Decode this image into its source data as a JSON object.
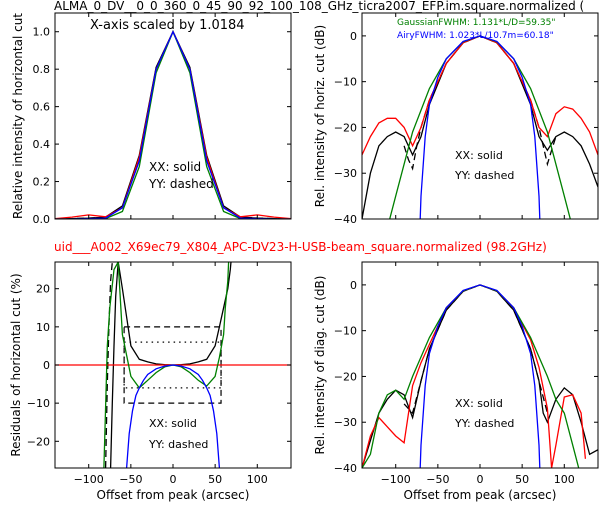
{
  "header": {
    "top_title": "ALMA_0_DV__0_0_360_0_45_90_92_100_108_GHz_ticra2007_EFP.im.square.normalized (",
    "mid_title": "uid___A002_X69ec79_X804_APC-DV23-H-USB-beam_square.normalized (98.2GHz)"
  },
  "colors": {
    "black": "#000000",
    "red": "#ff0000",
    "green": "#008000",
    "blue": "#0000ff"
  },
  "chart_data": [
    {
      "id": "tl",
      "type": "line",
      "xlim": [
        -140,
        140
      ],
      "ylim": [
        0,
        1.1
      ],
      "xticks": [
        -100,
        -50,
        0,
        50,
        100
      ],
      "yticks": [
        0.0,
        0.2,
        0.4,
        0.6,
        0.8,
        1.0
      ],
      "ytick_labels": [
        "0.0",
        "0.2",
        "0.4",
        "0.6",
        "0.8",
        "1.0"
      ],
      "xlabel": "",
      "ylabel": "Relative intensity of horizontal cut",
      "annotations": [
        "X-axis scaled by 1.0184",
        "XX: solid",
        "YY: dashed"
      ],
      "series": [
        {
          "color": "black",
          "dash": false,
          "x": [
            -140,
            -120,
            -100,
            -80,
            -60,
            -40,
            -20,
            0,
            20,
            40,
            60,
            80,
            100,
            120,
            140
          ],
          "y": [
            0,
            0.002,
            0.005,
            0.01,
            0.07,
            0.34,
            0.81,
            1.0,
            0.81,
            0.34,
            0.07,
            0.01,
            0.005,
            0.002,
            0
          ]
        },
        {
          "color": "black",
          "dash": true,
          "x": [
            -140,
            -120,
            -100,
            -80,
            -60,
            -40,
            -20,
            0,
            20,
            40,
            60,
            80,
            100,
            120,
            140
          ],
          "y": [
            0,
            0.002,
            0.005,
            0.01,
            0.06,
            0.32,
            0.8,
            1.0,
            0.8,
            0.32,
            0.06,
            0.01,
            0.005,
            0.002,
            0
          ]
        },
        {
          "color": "red",
          "dash": false,
          "x": [
            -140,
            -120,
            -100,
            -80,
            -60,
            -40,
            -20,
            0,
            20,
            40,
            60,
            80,
            100,
            120,
            140
          ],
          "y": [
            0.002,
            0.01,
            0.022,
            0.012,
            0.06,
            0.33,
            0.8,
            1.0,
            0.8,
            0.33,
            0.06,
            0.012,
            0.022,
            0.01,
            0.002
          ]
        },
        {
          "color": "green",
          "dash": false,
          "x": [
            -140,
            -120,
            -100,
            -80,
            -60,
            -40,
            -20,
            0,
            20,
            40,
            60,
            80,
            100,
            120,
            140
          ],
          "y": [
            0,
            0,
            0,
            0.002,
            0.04,
            0.28,
            0.78,
            1.0,
            0.78,
            0.28,
            0.04,
            0.002,
            0,
            0,
            0
          ]
        },
        {
          "color": "blue",
          "dash": false,
          "x": [
            -140,
            -120,
            -100,
            -80,
            -60,
            -40,
            -20,
            0,
            20,
            40,
            60,
            80,
            100,
            120,
            140
          ],
          "y": [
            0,
            0,
            0.002,
            0.005,
            0.06,
            0.31,
            0.8,
            1.0,
            0.8,
            0.31,
            0.06,
            0.005,
            0.002,
            0,
            0
          ]
        }
      ]
    },
    {
      "id": "tr",
      "type": "line",
      "xlim": [
        -140,
        140
      ],
      "ylim": [
        -40,
        5
      ],
      "xticks": [
        -100,
        -50,
        0,
        50,
        100
      ],
      "yticks": [
        -40,
        -30,
        -20,
        -10,
        0
      ],
      "ytick_labels": [
        "−40",
        "−30",
        "−20",
        "−10",
        "0"
      ],
      "xlabel": "",
      "ylabel": "Rel. intensity of horiz. cut (dB)",
      "annotations": [
        "XX: solid",
        "YY: dashed"
      ],
      "legend": [
        "GaussianFWHM: 1.131*L/D=59.35\"",
        "AiryFWHM: 1.023*L/10.7m=60.18\""
      ],
      "legend_placement": "top-right",
      "series": [
        {
          "color": "black",
          "dash": false,
          "x": [
            -140,
            -130,
            -120,
            -110,
            -100,
            -90,
            -80,
            -70,
            -60,
            -40,
            -20,
            0,
            20,
            40,
            60,
            70,
            80,
            90,
            100,
            110,
            120,
            130,
            140
          ],
          "y": [
            -40,
            -30,
            -24,
            -22,
            -21,
            -22,
            -26,
            -22,
            -15,
            -6,
            -1.5,
            0,
            -1.5,
            -6,
            -15,
            -22,
            -25,
            -22,
            -21,
            -22,
            -24,
            -28,
            -33
          ]
        },
        {
          "color": "black",
          "dash": true,
          "x": [
            -90,
            -85,
            -80,
            -75,
            -70,
            -60,
            -40,
            -20,
            0,
            20,
            40,
            60,
            70,
            75,
            80,
            85,
            90
          ],
          "y": [
            -24,
            -27,
            -29,
            -24,
            -20,
            -14,
            -6,
            -1.5,
            0,
            -1.5,
            -6,
            -14,
            -20,
            -24,
            -28,
            -25,
            -22
          ]
        },
        {
          "color": "red",
          "dash": false,
          "x": [
            -140,
            -130,
            -120,
            -110,
            -100,
            -90,
            -80,
            -70,
            -60,
            -40,
            -20,
            0,
            20,
            40,
            60,
            70,
            80,
            90,
            100,
            110,
            120,
            130,
            140
          ],
          "y": [
            -26,
            -22,
            -19,
            -18,
            -18,
            -20,
            -24,
            -20,
            -14,
            -6,
            -1.5,
            0,
            -1.5,
            -6,
            -14,
            -20,
            -22,
            -17,
            -15.5,
            -16,
            -18,
            -21,
            -26
          ]
        },
        {
          "color": "green",
          "dash": false,
          "x": [
            -110,
            -100,
            -80,
            -60,
            -40,
            -20,
            0,
            20,
            40,
            60,
            80,
            100,
            110
          ],
          "y": [
            -42,
            -35,
            -21,
            -11.5,
            -5,
            -1.3,
            0,
            -1.3,
            -5,
            -11.5,
            -21,
            -35,
            -42
          ]
        },
        {
          "color": "blue",
          "dash": false,
          "x": [
            -71,
            -70,
            -65,
            -60,
            -50,
            -40,
            -20,
            0,
            20,
            40,
            50,
            60,
            65,
            70,
            71
          ],
          "y": [
            -40,
            -35,
            -22,
            -15,
            -9,
            -5,
            -1.2,
            0,
            -1.2,
            -5,
            -9,
            -15,
            -22,
            -35,
            -40
          ]
        }
      ]
    },
    {
      "id": "bl",
      "type": "line",
      "xlim": [
        -140,
        140
      ],
      "ylim": [
        -27,
        27
      ],
      "xticks": [
        -100,
        -50,
        0,
        50,
        100
      ],
      "xtick_labels": [
        "−100",
        "−50",
        "0",
        "50",
        "100"
      ],
      "yticks": [
        -20,
        -10,
        0,
        10,
        20
      ],
      "ytick_labels": [
        "−20",
        "−10",
        "0",
        "10",
        "20"
      ],
      "xlabel": "Offset from peak (arcsec)",
      "ylabel": "Residuals of horizontal cut (%)",
      "annotations": [
        "XX: solid",
        "YY: dashed"
      ],
      "series": [
        {
          "color": "black",
          "dash": false,
          "x": [
            -74,
            -72,
            -70,
            -68,
            -65,
            -60,
            -50,
            -40,
            -30,
            -20,
            -10,
            0,
            10,
            20,
            30,
            40,
            50,
            55,
            60,
            65,
            68,
            70,
            72
          ],
          "y": [
            -27,
            -10,
            5,
            18,
            27,
            20,
            5,
            1.5,
            0.8,
            0.3,
            0.1,
            0,
            0.1,
            0.3,
            0.8,
            1.5,
            5,
            10,
            15,
            20,
            25,
            30,
            40
          ]
        },
        {
          "color": "black",
          "dash": true,
          "x": [
            -80,
            -78,
            -76,
            -74,
            -72
          ],
          "y": [
            -27,
            -5,
            10,
            22,
            27
          ]
        },
        {
          "color": "red",
          "dash": false,
          "x": [
            -140,
            140
          ],
          "y": [
            0,
            0
          ]
        },
        {
          "color": "green",
          "dash": false,
          "x": [
            -82,
            -78,
            -75,
            -70,
            -65,
            -60,
            -50,
            -40,
            -30,
            -20,
            -10,
            0,
            10,
            20,
            30,
            40,
            50,
            55,
            60,
            62,
            65,
            66
          ],
          "y": [
            -27,
            5,
            15,
            25,
            27,
            8,
            -3,
            -6,
            -4,
            -2,
            -0.5,
            0,
            -0.5,
            -2,
            -4,
            -5.5,
            -3,
            2,
            8,
            15,
            22,
            27
          ]
        },
        {
          "color": "blue",
          "dash": false,
          "x": [
            -55,
            -52,
            -48,
            -44,
            -40,
            -35,
            -30,
            -20,
            -10,
            0,
            10,
            20,
            30,
            35,
            40,
            44,
            48,
            52,
            55
          ],
          "y": [
            -27,
            -18,
            -12,
            -8,
            -6,
            -4,
            -2.5,
            -1,
            -0.3,
            0,
            -0.3,
            -1,
            -2.5,
            -4,
            -6,
            -8,
            -12,
            -18,
            -27
          ]
        }
      ],
      "reference_boxes": [
        {
          "style": "dashed",
          "x": [
            -58,
            57
          ],
          "y": [
            -10,
            10
          ]
        },
        {
          "style": "dotted",
          "x": [
            -58,
            57
          ],
          "y": [
            -6,
            6
          ]
        }
      ]
    },
    {
      "id": "br",
      "type": "line",
      "xlim": [
        -140,
        140
      ],
      "ylim": [
        -40,
        5
      ],
      "xticks": [
        -100,
        -50,
        0,
        50,
        100
      ],
      "xtick_labels": [
        "−100",
        "−50",
        "0",
        "50",
        "100"
      ],
      "yticks": [
        -40,
        -30,
        -20,
        -10,
        0
      ],
      "ytick_labels": [
        "−40",
        "−30",
        "−20",
        "−10",
        "0"
      ],
      "xlabel": "Offset from peak (arcsec)",
      "ylabel": "Rel. intensity of diag. cut (dB)",
      "annotations": [
        "XX: solid",
        "YY: dashed"
      ],
      "series": [
        {
          "color": "black",
          "dash": false,
          "x": [
            -140,
            -130,
            -120,
            -110,
            -100,
            -90,
            -80,
            -70,
            -60,
            -40,
            -20,
            0,
            20,
            40,
            60,
            70,
            75,
            80,
            90,
            100,
            110,
            120,
            130,
            140
          ],
          "y": [
            -40,
            -34,
            -28,
            -25,
            -23,
            -24,
            -29,
            -21,
            -14,
            -5.5,
            -1.4,
            0,
            -1.4,
            -5.5,
            -14,
            -21,
            -28,
            -30,
            -25,
            -22.5,
            -24,
            -30,
            -37,
            -36
          ]
        },
        {
          "color": "black",
          "dash": true,
          "x": [
            -90,
            -80,
            -70,
            -60,
            -40,
            -20,
            0,
            20,
            40,
            60,
            70,
            80
          ],
          "y": [
            -26,
            -28,
            -21,
            -14,
            -5.5,
            -1.4,
            0,
            -1.4,
            -5.5,
            -14,
            -21,
            -28
          ]
        },
        {
          "color": "red",
          "dash": false,
          "x": [
            -140,
            -130,
            -120,
            -110,
            -100,
            -90,
            -80,
            -70,
            -60,
            -40,
            -20,
            0,
            20,
            40,
            60,
            70,
            80,
            85,
            90,
            100,
            110,
            120,
            125
          ],
          "y": [
            -40,
            -33,
            -29,
            -31,
            -33,
            -34.5,
            -22,
            -17,
            -13,
            -5,
            -1.3,
            0,
            -1.3,
            -5,
            -12,
            -18,
            -27,
            -40,
            -35,
            -24.5,
            -24,
            -28,
            -38
          ]
        },
        {
          "color": "green",
          "dash": false,
          "x": [
            -140,
            -130,
            -120,
            -110,
            -100,
            -90,
            -80,
            -60,
            -40,
            -20,
            0,
            20,
            40,
            60,
            80,
            90,
            100,
            110,
            120
          ],
          "y": [
            -40,
            -37,
            -28,
            -24,
            -23,
            -25,
            -20,
            -11.5,
            -5,
            -1.3,
            0,
            -1.3,
            -5,
            -11.5,
            -20,
            -25,
            -28,
            -35,
            -42
          ]
        },
        {
          "color": "blue",
          "dash": false,
          "x": [
            -71,
            -70,
            -65,
            -60,
            -50,
            -40,
            -20,
            0,
            20,
            40,
            50,
            60,
            65,
            70,
            71
          ],
          "y": [
            -40,
            -35,
            -22,
            -15,
            -9,
            -5,
            -1.2,
            0,
            -1.2,
            -5,
            -9,
            -15,
            -22,
            -35,
            -40
          ]
        }
      ]
    }
  ]
}
